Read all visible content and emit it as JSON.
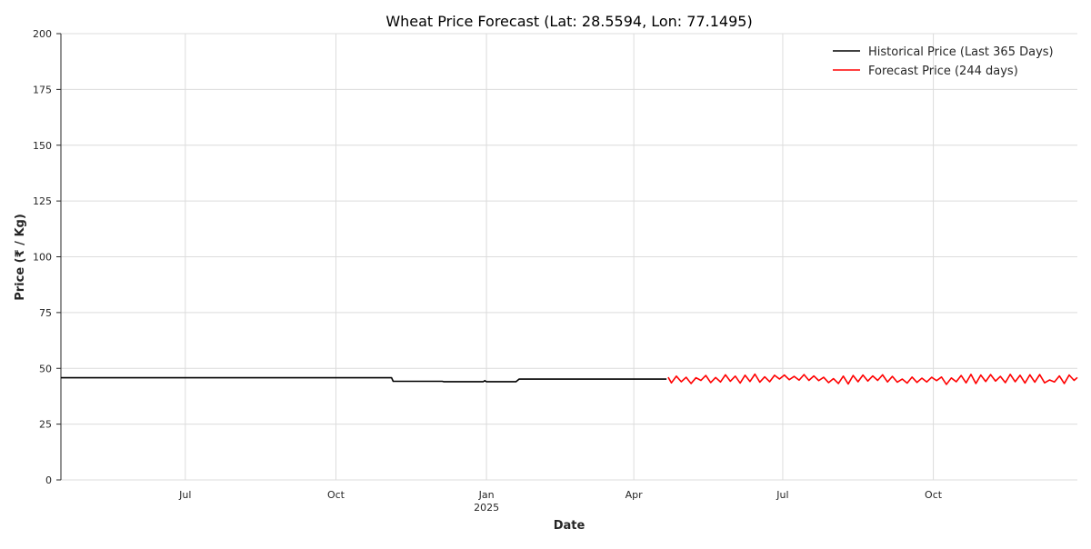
{
  "chart_data": {
    "type": "line",
    "title": "Wheat Price Forecast (Lat: 28.5594, Lon: 77.1495)",
    "xlabel": "Date",
    "ylabel": "Price (₹ / Kg)",
    "xlim": [
      "2024-04-16",
      "2025-12-28"
    ],
    "ylim": [
      0,
      200
    ],
    "y_ticks": [
      0,
      25,
      50,
      75,
      100,
      125,
      150,
      175,
      200
    ],
    "x_ticks": [
      {
        "date": "2024-07-01",
        "label": "Jul",
        "sublabel": ""
      },
      {
        "date": "2024-10-01",
        "label": "Oct",
        "sublabel": ""
      },
      {
        "date": "2025-01-01",
        "label": "Jan",
        "sublabel": "2025"
      },
      {
        "date": "2025-04-01",
        "label": "Apr",
        "sublabel": ""
      },
      {
        "date": "2025-07-01",
        "label": "Jul",
        "sublabel": ""
      },
      {
        "date": "2025-10-01",
        "label": "Oct",
        "sublabel": ""
      }
    ],
    "grid": true,
    "legend_position": "top-right",
    "series": [
      {
        "name": "Historical Price (Last 365 Days)",
        "color": "#000000",
        "points": [
          [
            "2024-04-16",
            45.8
          ],
          [
            "2024-11-04",
            45.8
          ],
          [
            "2024-11-05",
            44.2
          ],
          [
            "2024-12-05",
            44.2
          ],
          [
            "2024-12-06",
            44.0
          ],
          [
            "2024-12-30",
            44.0
          ],
          [
            "2024-12-31",
            44.5
          ],
          [
            "2025-01-01",
            44.0
          ],
          [
            "2025-01-19",
            44.0
          ],
          [
            "2025-01-21",
            45.2
          ],
          [
            "2025-04-21",
            45.2
          ]
        ]
      },
      {
        "name": "Forecast Price (244 days)",
        "color": "#ff0000",
        "points": [
          [
            "2025-04-22",
            46.0
          ],
          [
            "2025-04-24",
            43.5
          ],
          [
            "2025-04-27",
            46.5
          ],
          [
            "2025-04-30",
            44.0
          ],
          [
            "2025-05-03",
            46.0
          ],
          [
            "2025-05-06",
            43.2
          ],
          [
            "2025-05-09",
            45.8
          ],
          [
            "2025-05-12",
            44.6
          ],
          [
            "2025-05-15",
            46.8
          ],
          [
            "2025-05-18",
            43.6
          ],
          [
            "2025-05-21",
            45.9
          ],
          [
            "2025-05-24",
            43.9
          ],
          [
            "2025-05-27",
            47.1
          ],
          [
            "2025-05-30",
            44.2
          ],
          [
            "2025-06-02",
            46.5
          ],
          [
            "2025-06-05",
            43.4
          ],
          [
            "2025-06-08",
            46.9
          ],
          [
            "2025-06-11",
            44.1
          ],
          [
            "2025-06-14",
            47.4
          ],
          [
            "2025-06-17",
            43.8
          ],
          [
            "2025-06-20",
            46.2
          ],
          [
            "2025-06-23",
            44.0
          ],
          [
            "2025-06-26",
            46.9
          ],
          [
            "2025-06-29",
            45.2
          ],
          [
            "2025-07-02",
            47.0
          ],
          [
            "2025-07-05",
            44.9
          ],
          [
            "2025-07-08",
            46.4
          ],
          [
            "2025-07-11",
            44.7
          ],
          [
            "2025-07-14",
            47.2
          ],
          [
            "2025-07-17",
            44.6
          ],
          [
            "2025-07-20",
            46.6
          ],
          [
            "2025-07-23",
            44.5
          ],
          [
            "2025-07-26",
            46.0
          ],
          [
            "2025-07-29",
            43.6
          ],
          [
            "2025-08-01",
            45.4
          ],
          [
            "2025-08-04",
            43.2
          ],
          [
            "2025-08-07",
            46.5
          ],
          [
            "2025-08-10",
            43.0
          ],
          [
            "2025-08-13",
            46.8
          ],
          [
            "2025-08-16",
            44.0
          ],
          [
            "2025-08-19",
            47.0
          ],
          [
            "2025-08-22",
            44.3
          ],
          [
            "2025-08-25",
            46.6
          ],
          [
            "2025-08-28",
            44.6
          ],
          [
            "2025-08-31",
            47.1
          ],
          [
            "2025-09-03",
            43.9
          ],
          [
            "2025-09-06",
            46.4
          ],
          [
            "2025-09-09",
            43.8
          ],
          [
            "2025-09-12",
            45.2
          ],
          [
            "2025-09-15",
            43.4
          ],
          [
            "2025-09-18",
            46.1
          ],
          [
            "2025-09-21",
            43.7
          ],
          [
            "2025-09-24",
            45.6
          ],
          [
            "2025-09-27",
            43.9
          ],
          [
            "2025-09-30",
            46.0
          ],
          [
            "2025-10-03",
            44.5
          ],
          [
            "2025-10-06",
            46.1
          ],
          [
            "2025-10-09",
            42.8
          ],
          [
            "2025-10-12",
            45.7
          ],
          [
            "2025-10-15",
            44.0
          ],
          [
            "2025-10-18",
            46.8
          ],
          [
            "2025-10-21",
            43.5
          ],
          [
            "2025-10-24",
            47.3
          ],
          [
            "2025-10-27",
            43.2
          ],
          [
            "2025-10-30",
            47.0
          ],
          [
            "2025-11-02",
            44.1
          ],
          [
            "2025-11-05",
            47.2
          ],
          [
            "2025-11-08",
            44.3
          ],
          [
            "2025-11-11",
            46.4
          ],
          [
            "2025-11-14",
            43.6
          ],
          [
            "2025-11-17",
            47.3
          ],
          [
            "2025-11-20",
            44.0
          ],
          [
            "2025-11-23",
            46.9
          ],
          [
            "2025-11-26",
            43.4
          ],
          [
            "2025-11-29",
            47.1
          ],
          [
            "2025-12-02",
            43.8
          ],
          [
            "2025-12-05",
            47.2
          ],
          [
            "2025-12-08",
            43.5
          ],
          [
            "2025-12-11",
            44.8
          ],
          [
            "2025-12-14",
            43.9
          ],
          [
            "2025-12-17",
            46.6
          ],
          [
            "2025-12-20",
            43.2
          ],
          [
            "2025-12-23",
            47.0
          ],
          [
            "2025-12-26",
            44.6
          ],
          [
            "2025-12-28",
            45.9
          ]
        ]
      }
    ]
  }
}
